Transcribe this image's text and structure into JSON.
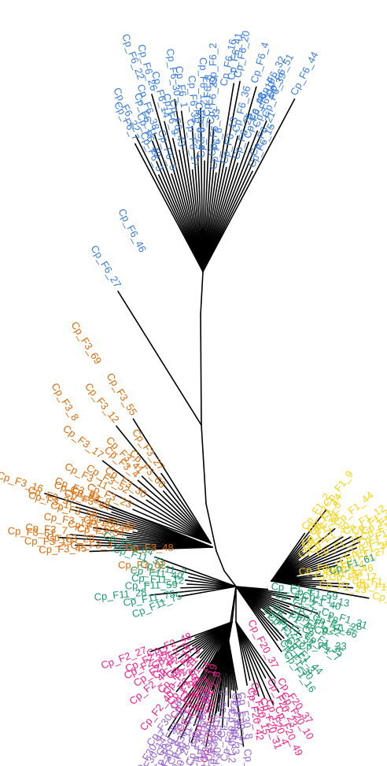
{
  "tree": {
    "colors": {
      "F6": "#3a7ddb",
      "F3": "#d96d0a",
      "F1": "#f5d20f",
      "F1b": "#1a9a6c",
      "F2": "#ef1f8a",
      "F30": "#9966cc",
      "branch": "#000000"
    },
    "labels": [
      {
        "text": "Cp_F6_22",
        "group": "F6"
      },
      {
        "text": "Cp_F6_2",
        "group": "F6"
      },
      {
        "text": "Cp_F6_16",
        "group": "F6"
      },
      {
        "text": "Cp_F6_51",
        "group": "F6"
      },
      {
        "text": "Cp_F6_32",
        "group": "F6"
      },
      {
        "text": "Cp_F6_19",
        "group": "F6"
      },
      {
        "text": "Cp_F6_46",
        "group": "F6"
      },
      {
        "text": "Cp_F6_27",
        "group": "F6"
      },
      {
        "text": "Cp_F3_69",
        "group": "F3"
      },
      {
        "text": "Cp_F3_8",
        "group": "F3"
      },
      {
        "text": "Cp_F3_48",
        "group": "F3"
      },
      {
        "text": "Cp_F3_62",
        "group": "F3"
      },
      {
        "text": "Cp_F1_15",
        "group": "F1"
      },
      {
        "text": "Cp_F1_61",
        "group": "F1b"
      },
      {
        "text": "Cp_F1_28",
        "group": "F1b"
      },
      {
        "text": "Cp_F1_33",
        "group": "F1b"
      },
      {
        "text": "Cp_F11_75",
        "group": "F1b"
      },
      {
        "text": "Cp_F20_37",
        "group": "F2"
      },
      {
        "text": "Cp_F30",
        "group": "F30"
      }
    ]
  }
}
